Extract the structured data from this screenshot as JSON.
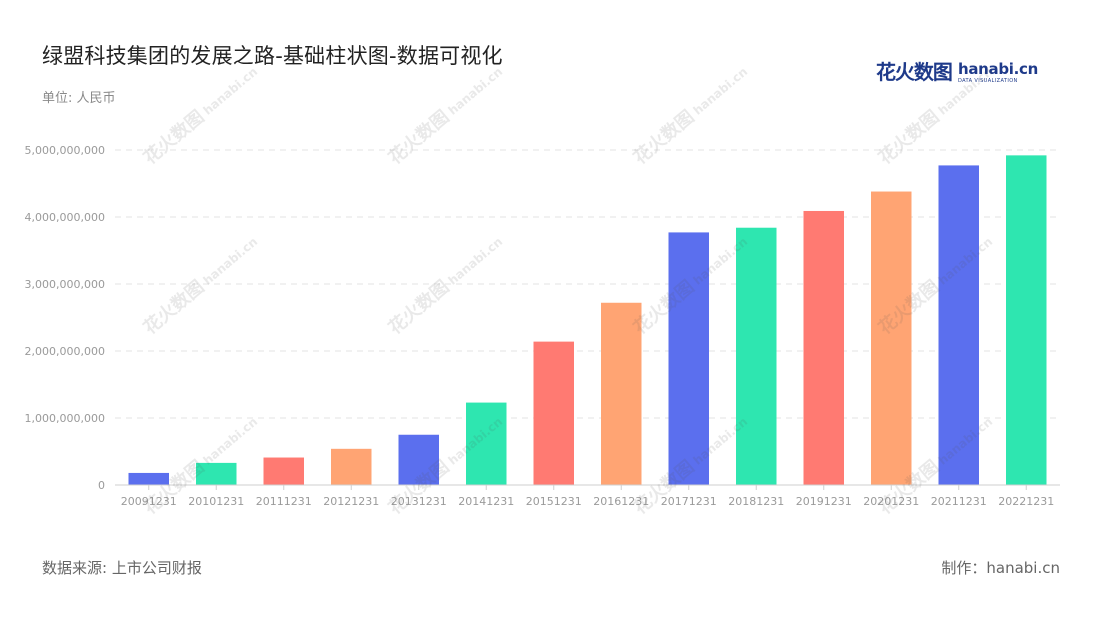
{
  "header": {
    "title": "绿盟科技集团的发展之路-基础柱状图-数据可视化",
    "unit": "单位: 人民币"
  },
  "logo": {
    "cn": "花火数图",
    "en": "hanabi.cn",
    "sub": "DATA VISUALIZATION"
  },
  "footer": {
    "source": "数据来源: 上市公司财报",
    "made_by": "制作：hanabi.cn"
  },
  "watermark": {
    "cn": "花火数图",
    "en": "hanabi.cn"
  },
  "colors": {
    "blue": "#5b6fee",
    "green": "#2ee6b0",
    "red": "#ff7a72",
    "orange": "#ffa473",
    "grid": "#e3e3e3",
    "axis": "#cfcfcf"
  },
  "chart_data": {
    "type": "bar",
    "categories": [
      "20091231",
      "20101231",
      "20111231",
      "20121231",
      "20131231",
      "20141231",
      "20151231",
      "20161231",
      "20171231",
      "20181231",
      "20191231",
      "20201231",
      "20211231",
      "20221231"
    ],
    "values": [
      180000000,
      330000000,
      410000000,
      540000000,
      750000000,
      1230000000,
      2140000000,
      2720000000,
      3770000000,
      3840000000,
      4090000000,
      4380000000,
      4770000000,
      4920000000
    ],
    "bar_colors": [
      "#5b6fee",
      "#2ee6b0",
      "#ff7a72",
      "#ffa473",
      "#5b6fee",
      "#2ee6b0",
      "#ff7a72",
      "#ffa473",
      "#5b6fee",
      "#2ee6b0",
      "#ff7a72",
      "#ffa473",
      "#5b6fee",
      "#2ee6b0"
    ],
    "y_ticks": [
      "0",
      "1,000,000,000",
      "2,000,000,000",
      "3,000,000,000",
      "4,000,000,000",
      "5,000,000,000"
    ],
    "ylim": [
      0,
      5000000000
    ],
    "grid": true
  }
}
